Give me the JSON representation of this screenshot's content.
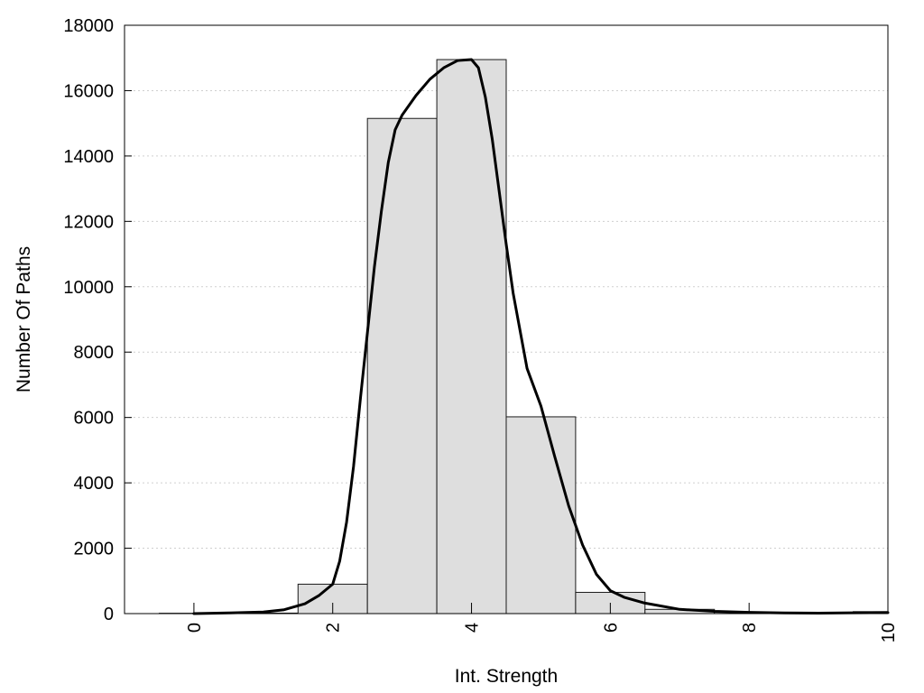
{
  "chart_data": {
    "type": "bar",
    "title": "",
    "xlabel": "Int. Strength",
    "ylabel": "Number Of Paths",
    "xlim": [
      -1,
      10
    ],
    "ylim": [
      0,
      18000
    ],
    "x_ticks": [
      0,
      2,
      4,
      6,
      8,
      10
    ],
    "x_tick_labels": [
      "0",
      "2",
      "4",
      "6",
      "8",
      "10"
    ],
    "y_ticks": [
      0,
      2000,
      4000,
      6000,
      8000,
      10000,
      12000,
      14000,
      16000,
      18000
    ],
    "y_tick_labels": [
      "0",
      "2000",
      "4000",
      "6000",
      "8000",
      "10000",
      "12000",
      "14000",
      "16000",
      "18000"
    ],
    "grid": "horizontal dotted",
    "legend": "none",
    "bars": {
      "categories": [
        0,
        1,
        2,
        3,
        4,
        5,
        6,
        7,
        8,
        9,
        10
      ],
      "bin_width": 1,
      "values": [
        10,
        15,
        900,
        15150,
        16950,
        6020,
        650,
        130,
        40,
        20,
        60
      ]
    },
    "curve": {
      "x": [
        0,
        0.5,
        1,
        1.3,
        1.6,
        1.8,
        2,
        2.1,
        2.2,
        2.3,
        2.4,
        2.5,
        2.6,
        2.7,
        2.8,
        2.9,
        3,
        3.2,
        3.4,
        3.6,
        3.8,
        4,
        4.1,
        4.2,
        4.3,
        4.4,
        4.5,
        4.6,
        4.8,
        5,
        5.2,
        5.4,
        5.6,
        5.8,
        6,
        6.2,
        6.5,
        7,
        7.5,
        8,
        8.5,
        9,
        9.5,
        10
      ],
      "y": [
        0,
        20,
        50,
        120,
        300,
        550,
        900,
        1600,
        2800,
        4500,
        6600,
        8600,
        10600,
        12300,
        13800,
        14800,
        15250,
        15850,
        16350,
        16700,
        16920,
        16950,
        16700,
        15800,
        14500,
        12900,
        11300,
        9800,
        7500,
        6350,
        4800,
        3300,
        2100,
        1200,
        700,
        500,
        320,
        130,
        70,
        40,
        20,
        15,
        25,
        30
      ]
    },
    "colors": {
      "bar_fill": "#dedede",
      "bar_stroke": "#1a1a1a",
      "curve": "#000000",
      "grid": "#cfcfcf",
      "frame": "#000000"
    }
  }
}
